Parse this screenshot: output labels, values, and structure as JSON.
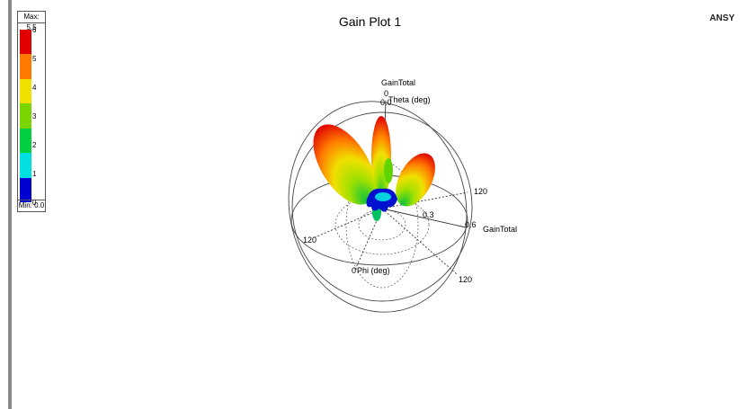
{
  "plot": {
    "title": "Gain Plot 1",
    "brand": "ANSY"
  },
  "legend": {
    "max_label": "Max: 5.5",
    "min_label": "Min: 0.0",
    "ticks": [
      "6",
      "5",
      "4",
      "3",
      "2",
      "1",
      "0"
    ],
    "colors": [
      "#e00000",
      "#ff7a00",
      "#f0e000",
      "#7ad400",
      "#00d040",
      "#00e0e0",
      "#0000d0"
    ]
  },
  "chart_data": {
    "type": "3d-polar-radiation",
    "title": "Gain Plot 1",
    "quantity": "GainTotal",
    "max": 5.5,
    "min": 0.0,
    "colorbar_ticks": [
      0,
      1,
      2,
      3,
      4,
      5,
      6
    ],
    "axes": {
      "theta_label": "Theta (deg)",
      "phi_label": "Phi (deg)",
      "radius_label": "GainTotal",
      "top_label": "GainTotal"
    },
    "radial_ticks": [
      "0.3",
      "0.6"
    ],
    "angle_ticks": [
      "120",
      "120",
      "120"
    ],
    "axis_zero_labels": [
      "0",
      "0.0",
      "0"
    ]
  }
}
